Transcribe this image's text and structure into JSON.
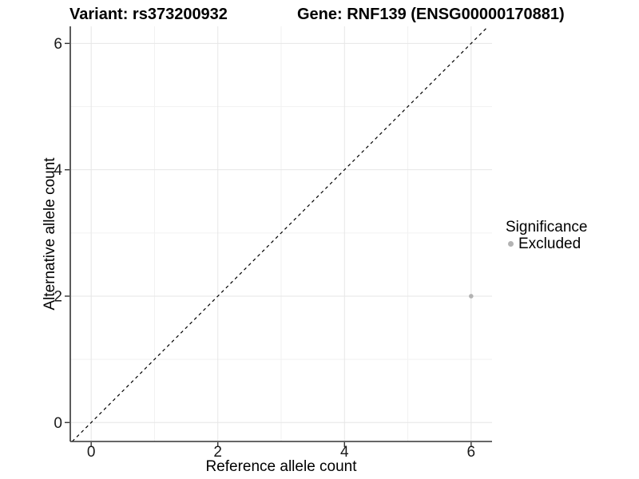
{
  "header": {
    "variant_title": "Variant: rs373200932",
    "gene_title": "Gene: RNF139 (ENSG00000170881)"
  },
  "chart_data": {
    "type": "scatter",
    "xlabel": "Reference allele count",
    "ylabel": "Alternative allele count",
    "xlim": [
      -0.33,
      6.33
    ],
    "ylim": [
      -0.3,
      6.27
    ],
    "x_major_ticks": [
      0,
      2,
      4,
      6
    ],
    "y_major_ticks": [
      0,
      2,
      4,
      6
    ],
    "x_minor_ticks": [
      1,
      3,
      5
    ],
    "y_minor_ticks": [
      1,
      3,
      5
    ],
    "grid": "on",
    "series": [
      {
        "name": "Excluded",
        "color": "#b3b3b3",
        "points": [
          {
            "x": 6,
            "y": 2
          }
        ]
      }
    ],
    "reference_line": {
      "kind": "identity",
      "slope": 1,
      "intercept": 0,
      "style": "dashed",
      "color": "#000000"
    },
    "legend": {
      "title": "Significance",
      "position": "right",
      "items": [
        {
          "label": "Excluded",
          "color": "#b3b3b3",
          "marker": "circle"
        }
      ]
    }
  },
  "colors": {
    "background": "#ffffff",
    "grid_major": "#e6e6e6",
    "grid_minor": "#f2f2f2",
    "axis_line": "#333333",
    "tick_mark": "#333333",
    "tick_label": "#1a1a1a",
    "point": "#b3b3b3"
  }
}
